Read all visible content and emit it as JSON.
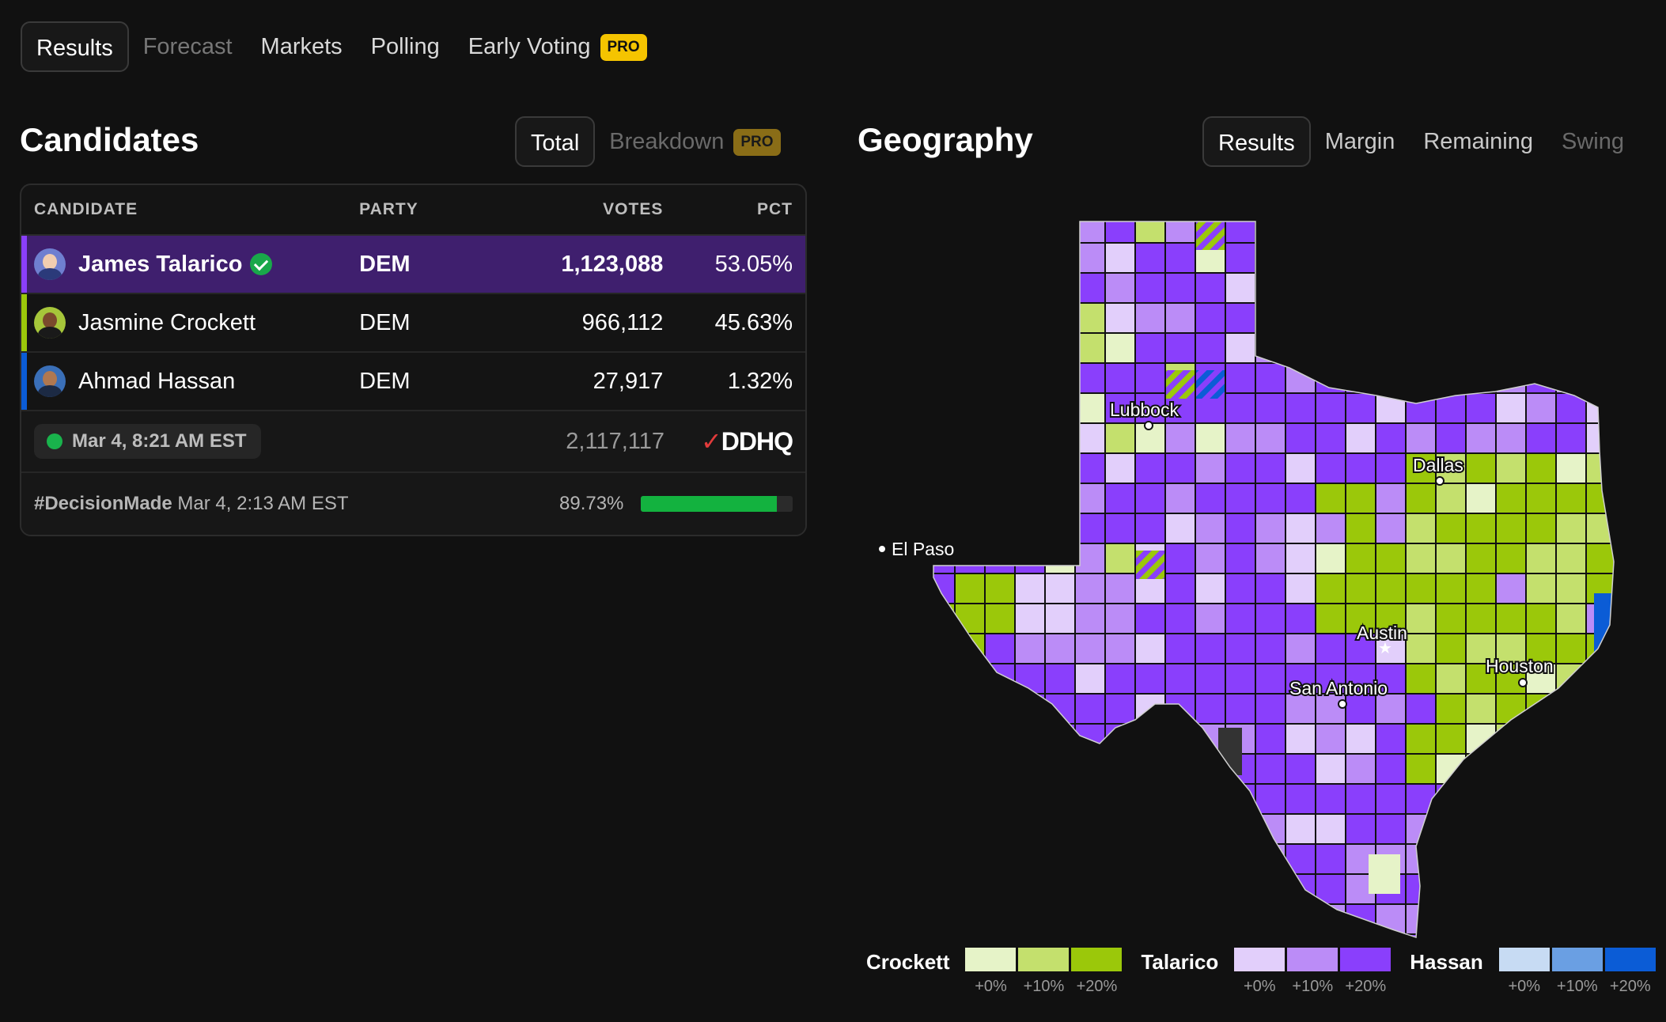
{
  "nav": {
    "tabs": [
      {
        "label": "Results",
        "active": true
      },
      {
        "label": "Forecast",
        "dim": true
      },
      {
        "label": "Markets"
      },
      {
        "label": "Polling"
      },
      {
        "label": "Early Voting",
        "badge": "PRO"
      }
    ]
  },
  "candidates": {
    "title": "Candidates",
    "toggle": {
      "total": "Total",
      "breakdown": "Breakdown",
      "badge": "PRO"
    },
    "headers": {
      "candidate": "CANDIDATE",
      "party": "PARTY",
      "votes": "VOTES",
      "pct": "PCT"
    },
    "rows": [
      {
        "name": "James Talarico",
        "party": "DEM",
        "votes": "1,123,088",
        "pct": "53.05%",
        "winner": true,
        "color": "#8a3ffc"
      },
      {
        "name": "Jasmine Crockett",
        "party": "DEM",
        "votes": "966,112",
        "pct": "45.63%",
        "color": "#9bc80a"
      },
      {
        "name": "Ahmad Hassan",
        "party": "DEM",
        "votes": "27,917",
        "pct": "1.32%",
        "color": "#0b5cd6"
      }
    ],
    "updated": "Mar 4, 8:21 AM EST",
    "total_votes": "2,117,117",
    "source": "DDHQ",
    "decision": {
      "tag": "#DecisionMade",
      "time": "Mar 4, 2:13 AM EST",
      "reporting": "89.73%",
      "reporting_value": 89.73
    }
  },
  "geography": {
    "title": "Geography",
    "tabs": [
      {
        "label": "Results",
        "active": true
      },
      {
        "label": "Margin"
      },
      {
        "label": "Remaining"
      },
      {
        "label": "Swing",
        "dim": true
      }
    ],
    "cities": [
      "Lubbock",
      "Dallas",
      "El Paso",
      "Austin",
      "San Antonio",
      "Houston"
    ]
  },
  "legend": [
    {
      "name": "Crockett",
      "colors": [
        "#e6f3c8",
        "#c4e06d",
        "#9bc80a"
      ],
      "labels": [
        "+0%",
        "+10%",
        "+20%"
      ]
    },
    {
      "name": "Talarico",
      "colors": [
        "#e2cffb",
        "#bb8cf7",
        "#8a3ffc"
      ],
      "labels": [
        "+0%",
        "+10%",
        "+20%"
      ]
    },
    {
      "name": "Hassan",
      "colors": [
        "#c7dbf3",
        "#6a9fe3",
        "#0b5cd6"
      ],
      "labels": [
        "+0%",
        "+10%",
        "+20%"
      ]
    }
  ]
}
